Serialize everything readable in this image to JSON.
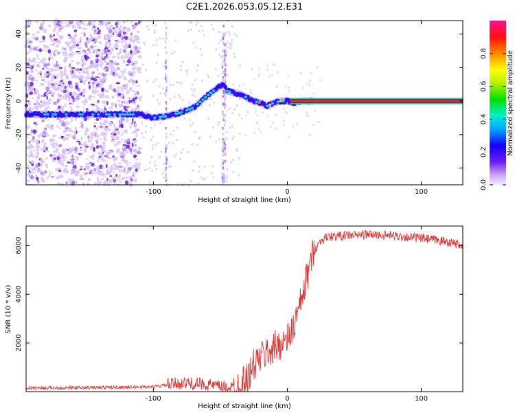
{
  "chart_data": [
    {
      "type": "heatmap",
      "title": "C2E1.2026.053.05.12.E31",
      "xlabel": "Height of straight line (km)",
      "ylabel": "Frequency (Hz)",
      "xlim": [
        -195,
        131
      ],
      "ylim": [
        -50,
        48
      ],
      "xticks": [
        -100,
        0,
        100
      ],
      "yticks": [
        -40,
        -20,
        0,
        20,
        40
      ],
      "colorbar": {
        "label": "Normalized spectral amplitude",
        "range": [
          0,
          1
        ],
        "ticks": [
          0.0,
          0.2,
          0.4,
          0.6,
          0.8
        ],
        "tick_labels": [
          "0.0",
          "0.2",
          "0.4",
          "0.6",
          "0.8"
        ]
      },
      "ridge": {
        "x": [
          -195,
          -160,
          -130,
          -110,
          -100,
          -90,
          -80,
          -70,
          -60,
          -52,
          -48,
          -45,
          -40,
          -35,
          -30,
          -25,
          -20,
          -15,
          -10,
          -5,
          0,
          5,
          10,
          20,
          40,
          80,
          131
        ],
        "y": [
          -8,
          -8,
          -8,
          -8,
          -10,
          -9,
          -7,
          -4,
          3,
          8,
          10,
          6,
          5,
          4,
          2,
          0,
          -1,
          -3,
          -1,
          0,
          0,
          -1,
          0,
          0,
          0,
          0,
          0
        ]
      },
      "noise_region_x": [
        -195,
        -110
      ]
    },
    {
      "type": "line",
      "xlabel": "Height of straight line (km)",
      "ylabel": "SNR (10 * v/v)",
      "xlim": [
        -195,
        131
      ],
      "ylim": [
        0,
        6800
      ],
      "xticks": [
        -100,
        0,
        100
      ],
      "yticks": [
        2000,
        4000,
        6000
      ],
      "series": [
        {
          "name": "SNR",
          "color": "#e83030",
          "x": [
            -195,
            -150,
            -100,
            -80,
            -60,
            -50,
            -40,
            -30,
            -25,
            -20,
            -15,
            -10,
            -5,
            0,
            5,
            10,
            15,
            20,
            25,
            30,
            40,
            60,
            80,
            100,
            120,
            131
          ],
          "y": [
            150,
            160,
            200,
            350,
            300,
            200,
            150,
            500,
            1100,
            1400,
            1600,
            1800,
            2000,
            2100,
            2700,
            3600,
            4800,
            5800,
            6200,
            6350,
            6400,
            6450,
            6400,
            6300,
            6150,
            6000
          ]
        }
      ]
    }
  ]
}
